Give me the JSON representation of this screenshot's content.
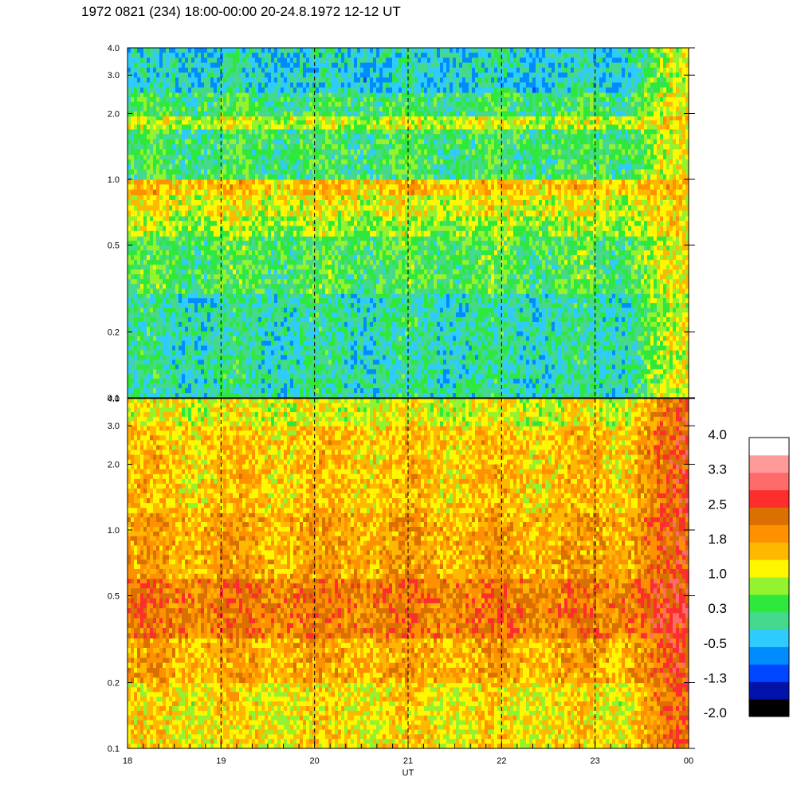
{
  "chart_data": {
    "type": "heatmap",
    "title": "1972 0821 (234) 18:00-00:00 20-24.8.1972  12-12 UT",
    "xlabel": "UT",
    "ylabel": "",
    "x_ticks": [
      "18",
      "19",
      "20",
      "21",
      "22",
      "23",
      "00"
    ],
    "x_range_hours": [
      18,
      24
    ],
    "dashed_gridlines_at_hours": [
      19,
      20,
      21,
      22,
      23
    ],
    "y_scale": "log",
    "y_range": [
      0.1,
      4.0
    ],
    "panels": [
      {
        "name": "top",
        "y_ticks": [
          "0.1",
          "0.2",
          "0.5",
          "1.0",
          "2.0",
          "3.0",
          "4.0"
        ],
        "y_tick_values": [
          0.1,
          0.2,
          0.5,
          1.0,
          2.0,
          3.0,
          4.0
        ],
        "bands": [
          {
            "y_from": 0.1,
            "y_to": 0.3,
            "level": 0.0
          },
          {
            "y_from": 0.3,
            "y_to": 0.55,
            "level": 0.4
          },
          {
            "y_from": 0.55,
            "y_to": 0.68,
            "level": 0.8
          },
          {
            "y_from": 0.68,
            "y_to": 0.85,
            "level": 1.1
          },
          {
            "y_from": 0.85,
            "y_to": 1.0,
            "level": 1.5
          },
          {
            "y_from": 1.0,
            "y_to": 1.3,
            "level": 0.3
          },
          {
            "y_from": 1.3,
            "y_to": 1.7,
            "level": 0.3
          },
          {
            "y_from": 1.7,
            "y_to": 1.95,
            "level": 1.0
          },
          {
            "y_from": 1.95,
            "y_to": 2.5,
            "level": 0.3
          },
          {
            "y_from": 2.5,
            "y_to": 4.0,
            "level": -0.2
          }
        ],
        "right_edge_level": 1.4
      },
      {
        "name": "bottom",
        "y_ticks": [
          "0.1",
          "0.2",
          "0.5",
          "1.0",
          "2.0",
          "3.0",
          "4.0"
        ],
        "y_tick_values": [
          0.1,
          0.2,
          0.5,
          1.0,
          2.0,
          3.0,
          4.0
        ],
        "bands": [
          {
            "y_from": 0.1,
            "y_to": 0.2,
            "level": 1.3
          },
          {
            "y_from": 0.2,
            "y_to": 0.32,
            "level": 1.7
          },
          {
            "y_from": 0.32,
            "y_to": 0.6,
            "level": 2.15
          },
          {
            "y_from": 0.6,
            "y_to": 1.2,
            "level": 1.75
          },
          {
            "y_from": 1.2,
            "y_to": 3.0,
            "level": 1.5
          },
          {
            "y_from": 3.0,
            "y_to": 4.0,
            "level": 1.1
          }
        ],
        "right_edge_level": 2.7
      }
    ],
    "colorbar": {
      "tick_labels": [
        "4.0",
        "3.3",
        "2.5",
        "1.8",
        "1.0",
        "0.3",
        "-0.5",
        "-1.3",
        "-2.0"
      ],
      "min": -2.0,
      "max": 4.0,
      "colors": [
        "#000000",
        "#0012a8",
        "#0045ff",
        "#008cff",
        "#2ecbff",
        "#44d98c",
        "#2ee83c",
        "#95f22e",
        "#fff700",
        "#ffb800",
        "#ff9000",
        "#d97000",
        "#ff2e2e",
        "#ff6a6a",
        "#ff9a9a",
        "#ffffff"
      ]
    }
  }
}
